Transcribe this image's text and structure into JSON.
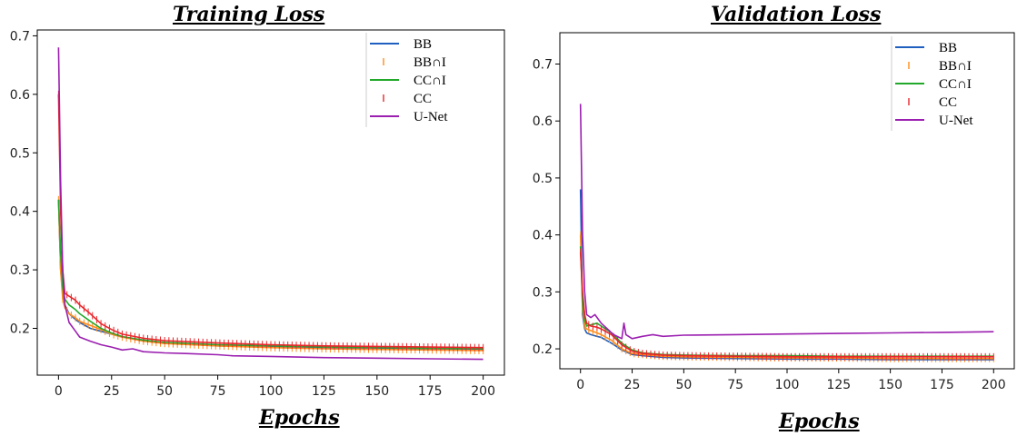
{
  "chart_data": [
    {
      "type": "line",
      "title": "Training Loss",
      "xlabel": "Epochs",
      "ylabel": "",
      "xlim": [
        -10,
        210
      ],
      "ylim": [
        0.12,
        0.71
      ],
      "xticks": [
        0,
        25,
        50,
        75,
        100,
        125,
        150,
        175,
        200
      ],
      "yticks": [
        0.2,
        0.3,
        0.4,
        0.5,
        0.6,
        0.7
      ],
      "grid": false,
      "legend_position": "top-right",
      "series": [
        {
          "name": "BB",
          "color": "#1f5fbf",
          "style": "solid",
          "x": [
            0,
            1,
            2,
            3,
            5,
            8,
            10,
            15,
            20,
            25,
            30,
            40,
            50,
            75,
            100,
            125,
            150,
            175,
            200
          ],
          "y": [
            0.42,
            0.3,
            0.26,
            0.24,
            0.225,
            0.215,
            0.21,
            0.2,
            0.195,
            0.19,
            0.185,
            0.18,
            0.175,
            0.17,
            0.168,
            0.166,
            0.165,
            0.164,
            0.163
          ]
        },
        {
          "name": "BB∩I",
          "color": "#ff8c1a",
          "style": "ticks",
          "x": [
            0,
            1,
            2,
            3,
            5,
            8,
            10,
            15,
            20,
            25,
            30,
            40,
            50,
            75,
            100,
            125,
            150,
            175,
            200
          ],
          "y": [
            0.42,
            0.3,
            0.25,
            0.235,
            0.225,
            0.218,
            0.212,
            0.205,
            0.198,
            0.19,
            0.185,
            0.178,
            0.174,
            0.17,
            0.167,
            0.165,
            0.164,
            0.163,
            0.162
          ]
        },
        {
          "name": "CC∩I",
          "color": "#22a82b",
          "style": "solid",
          "x": [
            0,
            1,
            2,
            3,
            5,
            8,
            10,
            15,
            20,
            25,
            30,
            40,
            50,
            75,
            100,
            125,
            150,
            175,
            200
          ],
          "y": [
            0.42,
            0.33,
            0.27,
            0.25,
            0.24,
            0.232,
            0.225,
            0.212,
            0.2,
            0.192,
            0.186,
            0.18,
            0.176,
            0.172,
            0.17,
            0.168,
            0.167,
            0.166,
            0.165
          ]
        },
        {
          "name": "CC",
          "color": "#e8262b",
          "style": "ticks",
          "x": [
            0,
            1,
            2,
            3,
            5,
            8,
            10,
            15,
            20,
            25,
            30,
            40,
            50,
            75,
            100,
            125,
            150,
            175,
            200
          ],
          "y": [
            0.6,
            0.4,
            0.3,
            0.26,
            0.255,
            0.248,
            0.24,
            0.225,
            0.208,
            0.198,
            0.19,
            0.183,
            0.179,
            0.175,
            0.172,
            0.17,
            0.169,
            0.168,
            0.167
          ]
        },
        {
          "name": "U-Net",
          "color": "#9b1fb0",
          "style": "solid",
          "x": [
            0,
            1,
            2,
            3,
            5,
            8,
            10,
            15,
            20,
            25,
            30,
            35,
            40,
            50,
            60,
            75,
            82,
            100,
            125,
            150,
            175,
            200
          ],
          "y": [
            0.68,
            0.45,
            0.3,
            0.24,
            0.21,
            0.195,
            0.185,
            0.178,
            0.172,
            0.168,
            0.163,
            0.165,
            0.16,
            0.158,
            0.157,
            0.155,
            0.153,
            0.152,
            0.15,
            0.149,
            0.148,
            0.147
          ]
        }
      ]
    },
    {
      "type": "line",
      "title": "Validation Loss",
      "xlabel": "Epochs",
      "ylabel": "",
      "xlim": [
        -10,
        210
      ],
      "ylim": [
        0.165,
        0.755
      ],
      "xticks": [
        0,
        25,
        50,
        75,
        100,
        125,
        150,
        175,
        200
      ],
      "yticks": [
        0.2,
        0.3,
        0.4,
        0.5,
        0.6,
        0.7
      ],
      "grid": false,
      "legend_position": "top-right",
      "series": [
        {
          "name": "BB",
          "color": "#1f5fbf",
          "style": "solid",
          "x": [
            0,
            1,
            2,
            3,
            5,
            8,
            10,
            15,
            20,
            25,
            30,
            40,
            50,
            75,
            100,
            125,
            150,
            175,
            200
          ],
          "y": [
            0.48,
            0.26,
            0.235,
            0.228,
            0.225,
            0.222,
            0.22,
            0.21,
            0.198,
            0.19,
            0.188,
            0.185,
            0.184,
            0.183,
            0.182,
            0.182,
            0.181,
            0.181,
            0.181
          ]
        },
        {
          "name": "BB∩I",
          "color": "#ff8c1a",
          "style": "ticks",
          "x": [
            0,
            1,
            2,
            3,
            5,
            8,
            10,
            15,
            20,
            25,
            30,
            40,
            50,
            75,
            100,
            125,
            150,
            175,
            200
          ],
          "y": [
            0.4,
            0.27,
            0.24,
            0.235,
            0.232,
            0.228,
            0.225,
            0.215,
            0.2,
            0.192,
            0.19,
            0.187,
            0.186,
            0.185,
            0.184,
            0.184,
            0.183,
            0.183,
            0.183
          ]
        },
        {
          "name": "CC∩I",
          "color": "#22a82b",
          "style": "solid",
          "x": [
            0,
            1,
            2,
            3,
            5,
            8,
            10,
            15,
            20,
            25,
            30,
            40,
            50,
            75,
            100,
            125,
            150,
            175,
            200
          ],
          "y": [
            0.38,
            0.28,
            0.25,
            0.24,
            0.242,
            0.245,
            0.24,
            0.228,
            0.21,
            0.198,
            0.193,
            0.19,
            0.189,
            0.188,
            0.188,
            0.187,
            0.187,
            0.187,
            0.187
          ]
        },
        {
          "name": "CC",
          "color": "#e8262b",
          "style": "ticks",
          "x": [
            0,
            1,
            2,
            3,
            5,
            8,
            10,
            15,
            20,
            25,
            30,
            40,
            50,
            75,
            100,
            125,
            150,
            175,
            200
          ],
          "y": [
            0.37,
            0.3,
            0.26,
            0.245,
            0.24,
            0.238,
            0.235,
            0.225,
            0.207,
            0.196,
            0.192,
            0.189,
            0.188,
            0.187,
            0.186,
            0.186,
            0.186,
            0.186,
            0.186
          ]
        },
        {
          "name": "U-Net",
          "color": "#9b1fb0",
          "style": "solid",
          "x": [
            0,
            1,
            2,
            3,
            5,
            7,
            10,
            13,
            16,
            20,
            21,
            22,
            25,
            30,
            35,
            40,
            50,
            75,
            100,
            125,
            150,
            175,
            200
          ],
          "y": [
            0.63,
            0.4,
            0.3,
            0.26,
            0.255,
            0.26,
            0.245,
            0.235,
            0.225,
            0.218,
            0.245,
            0.225,
            0.218,
            0.222,
            0.225,
            0.222,
            0.224,
            0.225,
            0.226,
            0.227,
            0.228,
            0.229,
            0.23
          ]
        }
      ]
    }
  ]
}
